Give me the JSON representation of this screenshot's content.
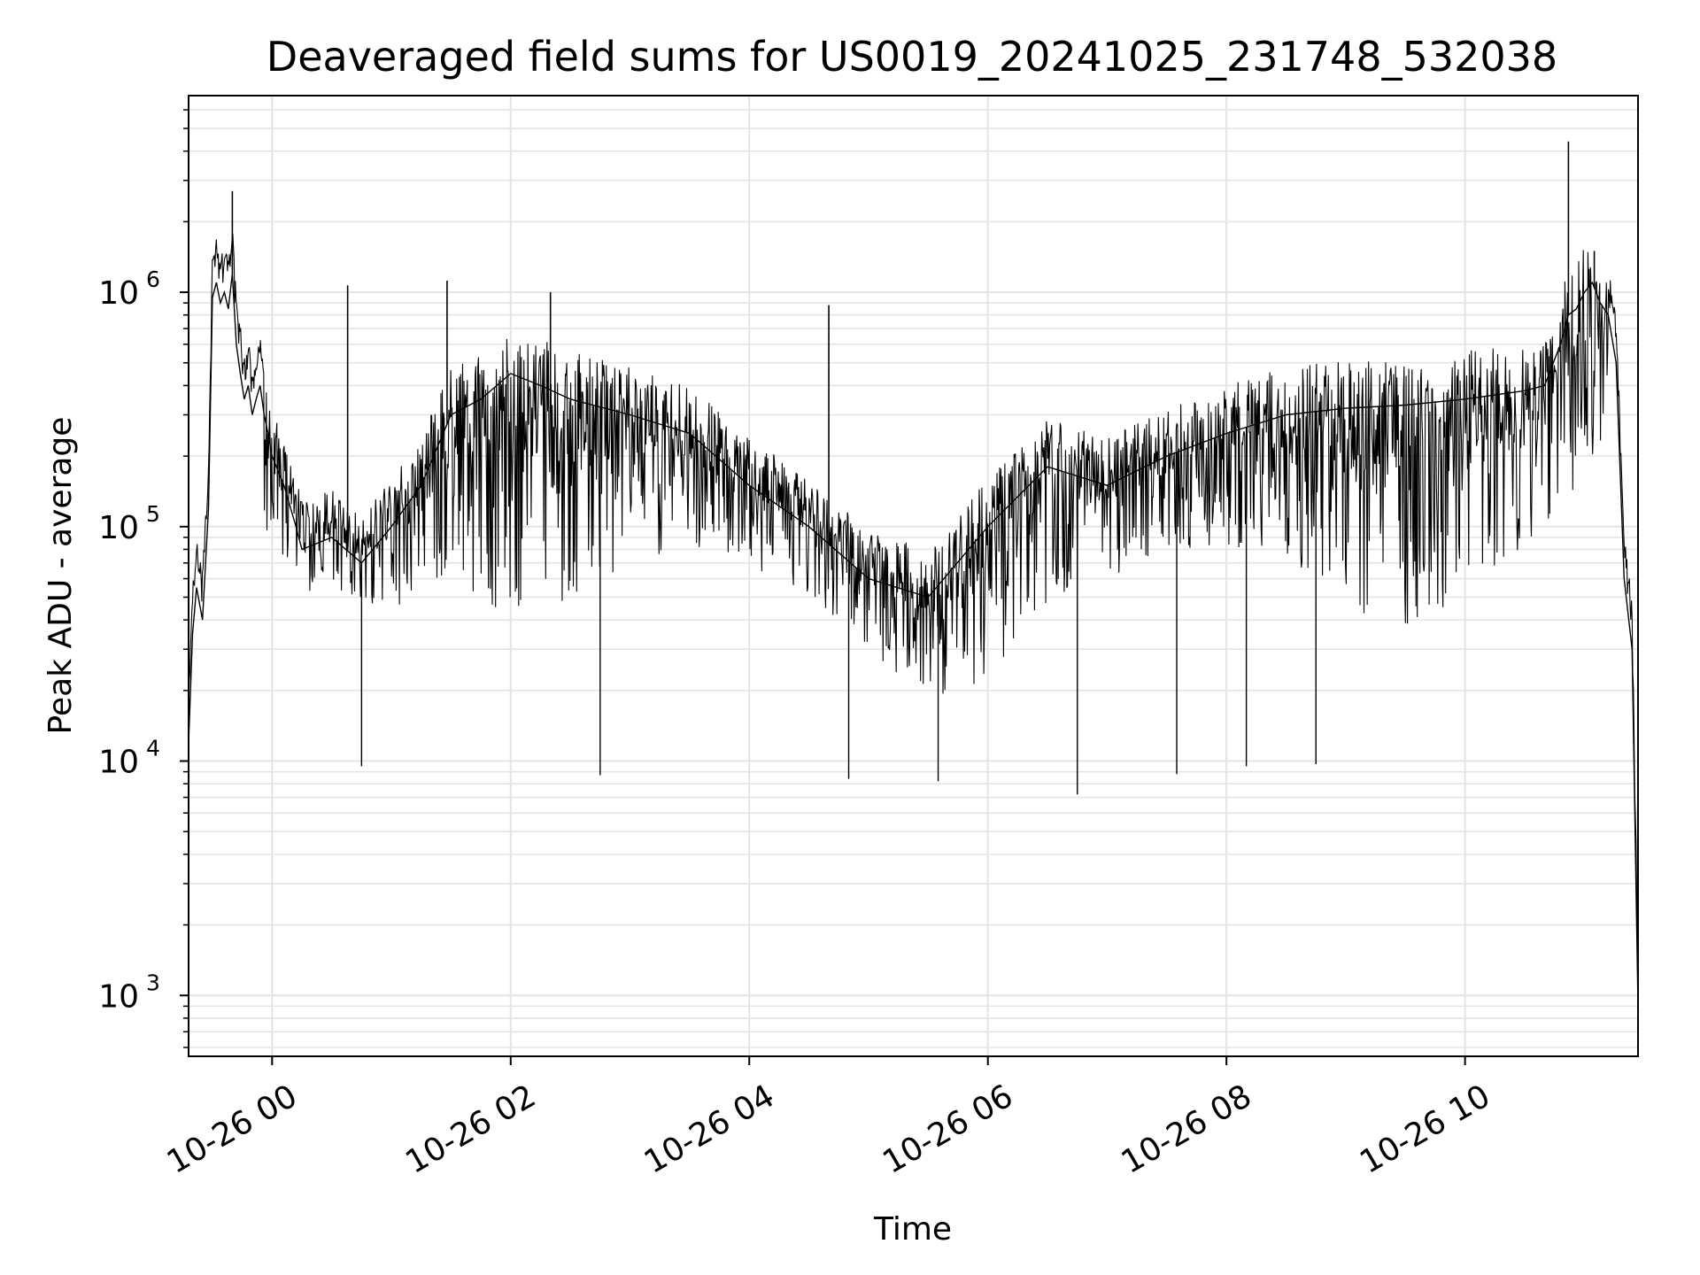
{
  "chart_data": {
    "type": "line",
    "title": "Deaveraged field sums for US0019_20241025_231748_532038",
    "xlabel": "Time",
    "ylabel": "Peak ADU - average",
    "y_scale": "log",
    "ylim": [
      550,
      6900000
    ],
    "xlim": [
      "2024-10-25T23:18:00",
      "2024-10-26T11:27:00"
    ],
    "grid": true,
    "line_color": "#000000",
    "grid_color": "#e4e4e4",
    "x_ticks": [
      {
        "value": "2024-10-26T00:00:00",
        "label": "10-26 00"
      },
      {
        "value": "2024-10-26T02:00:00",
        "label": "10-26 02"
      },
      {
        "value": "2024-10-26T04:00:00",
        "label": "10-26 04"
      },
      {
        "value": "2024-10-26T06:00:00",
        "label": "10-26 06"
      },
      {
        "value": "2024-10-26T08:00:00",
        "label": "10-26 08"
      },
      {
        "value": "2024-10-26T10:00:00",
        "label": "10-26 10"
      }
    ],
    "y_ticks": [
      {
        "value": 1000,
        "base": "10",
        "exp": "3"
      },
      {
        "value": 10000,
        "base": "10",
        "exp": "4"
      },
      {
        "value": 100000,
        "base": "10",
        "exp": "5"
      },
      {
        "value": 1000000,
        "base": "10",
        "exp": "6"
      }
    ],
    "series": [
      {
        "x": [
          "2024-10-25T23:18:00",
          "2024-10-25T23:20:00",
          "2024-10-25T23:22:00",
          "2024-10-25T23:25:00",
          "2024-10-25T23:28:00",
          "2024-10-25T23:30:00",
          "2024-10-25T23:32:00",
          "2024-10-25T23:34:00",
          "2024-10-25T23:36:00",
          "2024-10-25T23:38:00",
          "2024-10-25T23:40:00",
          "2024-10-25T23:42:00",
          "2024-10-25T23:44:00",
          "2024-10-25T23:46:00",
          "2024-10-25T23:48:00",
          "2024-10-25T23:50:00",
          "2024-10-25T23:52:00",
          "2024-10-25T23:54:00",
          "2024-10-25T23:56:00",
          "2024-10-25T23:58:00",
          "2024-10-26T00:00:00",
          "2024-10-26T00:06:00",
          "2024-10-26T00:12:00",
          "2024-10-26T00:15:00",
          "2024-10-26T00:30:00",
          "2024-10-26T00:45:00",
          "2024-10-26T01:00:00",
          "2024-10-26T01:15:00",
          "2024-10-26T01:30:00",
          "2024-10-26T01:45:00",
          "2024-10-26T02:00:00",
          "2024-10-26T02:15:00",
          "2024-10-26T02:30:00",
          "2024-10-26T03:00:00",
          "2024-10-26T03:30:00",
          "2024-10-26T04:00:00",
          "2024-10-26T04:30:00",
          "2024-10-26T05:00:00",
          "2024-10-26T05:30:00",
          "2024-10-26T06:00:00",
          "2024-10-26T06:30:00",
          "2024-10-26T07:00:00",
          "2024-10-26T07:30:00",
          "2024-10-26T08:00:00",
          "2024-10-26T08:30:00",
          "2024-10-26T09:00:00",
          "2024-10-26T09:30:00",
          "2024-10-26T10:00:00",
          "2024-10-26T10:30:00",
          "2024-10-26T10:40:00",
          "2024-10-26T10:48:00",
          "2024-10-26T10:52:00",
          "2024-10-26T10:56:00",
          "2024-10-26T11:00:00",
          "2024-10-26T11:04:00",
          "2024-10-26T11:08:00",
          "2024-10-26T11:12:00",
          "2024-10-26T11:16:00",
          "2024-10-26T11:20:00",
          "2024-10-26T11:24:00",
          "2024-10-26T11:27:00"
        ],
        "y": [
          12000,
          35000,
          55000,
          40000,
          120000,
          950000,
          1100000,
          900000,
          1000000,
          850000,
          1200000,
          600000,
          450000,
          350000,
          400000,
          300000,
          350000,
          400000,
          300000,
          250000,
          200000,
          150000,
          100000,
          80000,
          90000,
          70000,
          100000,
          150000,
          300000,
          350000,
          450000,
          400000,
          350000,
          300000,
          250000,
          150000,
          100000,
          60000,
          50000,
          100000,
          180000,
          150000,
          200000,
          250000,
          300000,
          320000,
          330000,
          350000,
          380000,
          400000,
          600000,
          800000,
          850000,
          1000000,
          1100000,
          900000,
          800000,
          500000,
          60000,
          30000,
          900
        ]
      }
    ],
    "spikes": [
      {
        "x": "2024-10-25T23:40:00",
        "y": 2700000
      },
      {
        "x": "2024-10-26T00:38:00",
        "y": 1070000
      },
      {
        "x": "2024-10-26T01:28:00",
        "y": 1120000
      },
      {
        "x": "2024-10-26T02:20:00",
        "y": 1000000
      },
      {
        "x": "2024-10-26T04:40:00",
        "y": 880000
      },
      {
        "x": "2024-10-26T10:52:00",
        "y": 4400000
      },
      {
        "x": "2024-10-26T11:05:00",
        "y": 1500000
      }
    ],
    "dips": [
      {
        "x": "2024-10-26T00:45:00",
        "y": 9500
      },
      {
        "x": "2024-10-26T02:45:00",
        "y": 8700
      },
      {
        "x": "2024-10-26T04:50:00",
        "y": 8400
      },
      {
        "x": "2024-10-26T05:35:00",
        "y": 8200
      },
      {
        "x": "2024-10-26T06:45:00",
        "y": 7200
      },
      {
        "x": "2024-10-26T07:35:00",
        "y": 8800
      },
      {
        "x": "2024-10-26T08:10:00",
        "y": 9500
      },
      {
        "x": "2024-10-26T08:45:00",
        "y": 9700
      }
    ]
  }
}
